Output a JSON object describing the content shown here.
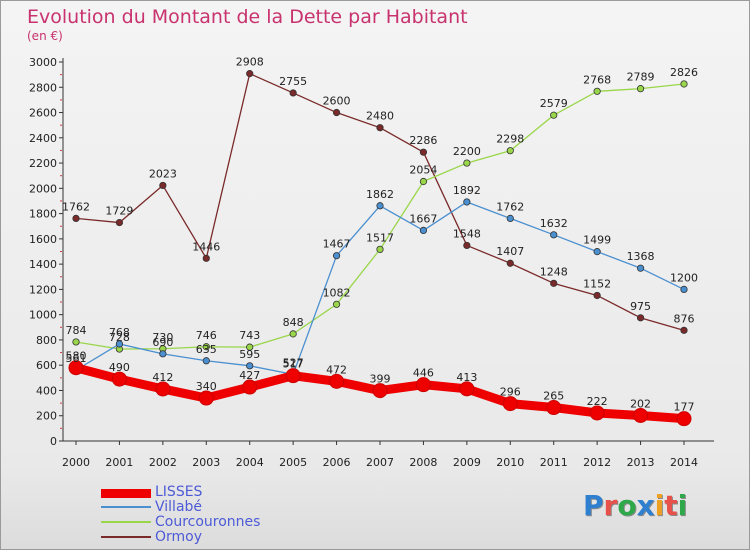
{
  "title": "Evolution du Montant de la Dette par Habitant",
  "subtitle": "(en €)",
  "logo_text": "Proxiti",
  "logo_colors": [
    "#2f7fd0",
    "#e8504a",
    "#2fa84a",
    "#2f7fd0",
    "#f0a020",
    "#e8504a",
    "#2fa84a"
  ],
  "chart_data": {
    "type": "line",
    "x": [
      "2000",
      "2001",
      "2002",
      "2003",
      "2004",
      "2005",
      "2006",
      "2007",
      "2008",
      "2009",
      "2010",
      "2011",
      "2012",
      "2013",
      "2014"
    ],
    "ylim": [
      0,
      3000
    ],
    "yticks": [
      "0",
      "200",
      "400",
      "600",
      "800",
      "1000",
      "1200",
      "1400",
      "1600",
      "1800",
      "2000",
      "2200",
      "2400",
      "2600",
      "2800",
      "3000"
    ],
    "grid": false,
    "legend_position": "bottom-left",
    "series": [
      {
        "name": "Ormoy",
        "color": "#7a2a2a",
        "values": [
          1762,
          1729,
          2023,
          1446,
          2908,
          2755,
          2600,
          2480,
          2286,
          1548,
          1407,
          1248,
          1152,
          975,
          876
        ]
      },
      {
        "name": "Courcouronnes",
        "color": "#9ad64a",
        "values": [
          784,
          728,
          730,
          746,
          743,
          848,
          1082,
          1517,
          2054,
          2200,
          2298,
          2579,
          2768,
          2789,
          2826
        ]
      },
      {
        "name": "Villabé",
        "color": "#4a8fd0",
        "values": [
          561,
          768,
          690,
          635,
          595,
          527,
          1467,
          1862,
          1667,
          1892,
          1762,
          1632,
          1499,
          1368,
          1200
        ]
      },
      {
        "name": "LISSES",
        "color": "#ee0000",
        "values": [
          580,
          490,
          412,
          340,
          427,
          517,
          472,
          399,
          446,
          413,
          296,
          265,
          222,
          202,
          177
        ]
      }
    ],
    "legend": [
      "LISSES",
      "Villabé",
      "Courcouronnes",
      "Ormoy"
    ]
  }
}
